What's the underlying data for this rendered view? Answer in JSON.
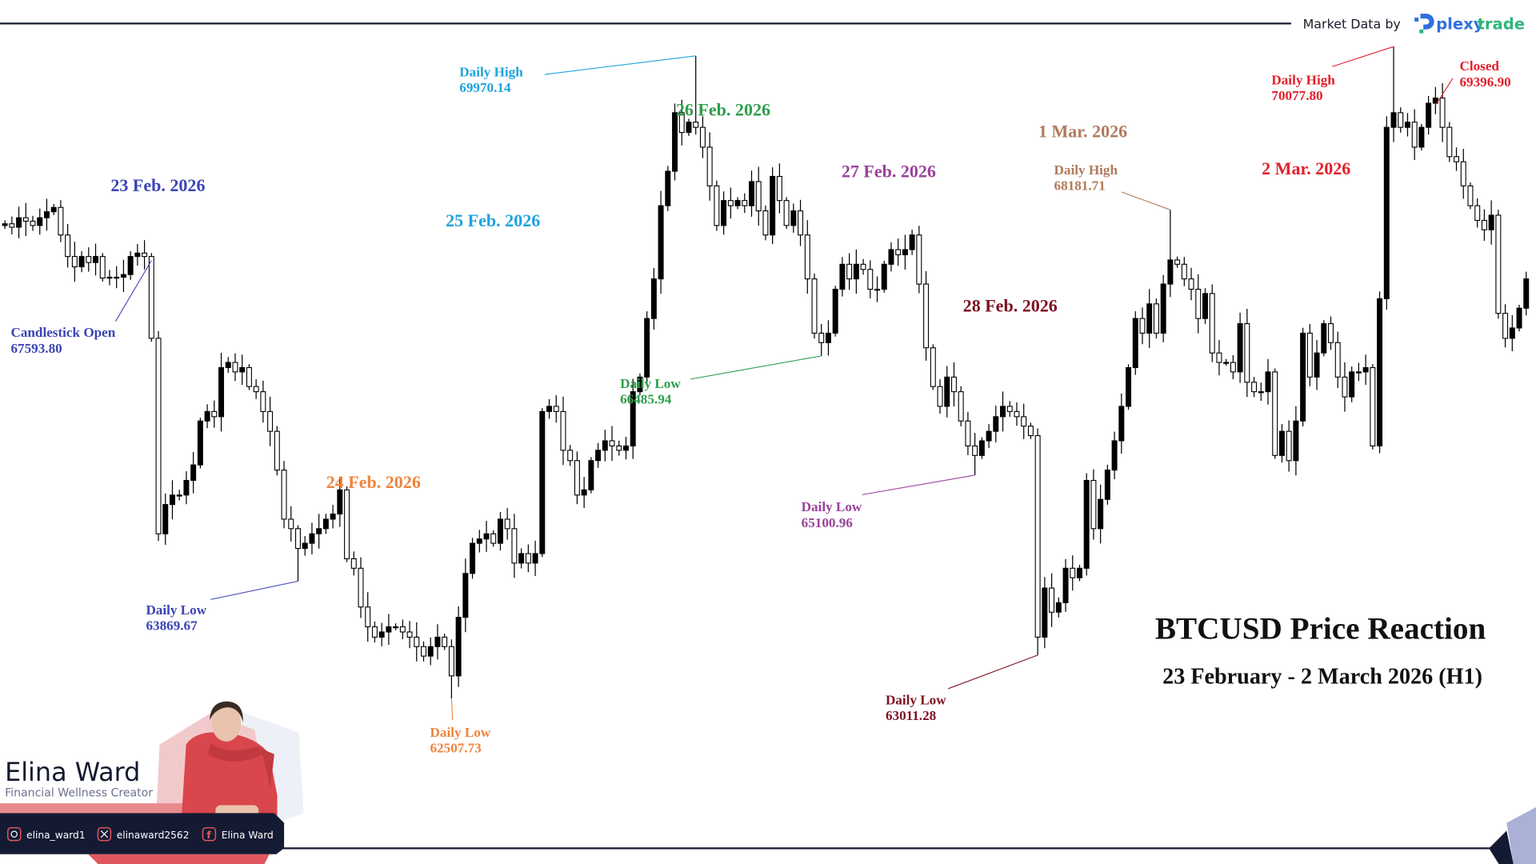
{
  "header": {
    "market_data_label": "Market Data by",
    "brand_name_part1": "plexy",
    "brand_name_part2": "trade",
    "brand_colors": {
      "blue": "#2f6fe0",
      "green": "#2fb57a"
    }
  },
  "title": "BTCUSD Price Reaction",
  "subtitle": "23 February - 2 March 2026 (H1)",
  "day_labels": [
    {
      "text": "23 Feb. 2026",
      "color": "#3b44b5"
    },
    {
      "text": "24 Feb. 2026",
      "color": "#f0843c"
    },
    {
      "text": "25 Feb. 2026",
      "color": "#1fa3de"
    },
    {
      "text": "26 Feb. 2026",
      "color": "#2f9e4c"
    },
    {
      "text": "27 Feb. 2026",
      "color": "#9a429c"
    },
    {
      "text": "28 Feb. 2026",
      "color": "#7d1020"
    },
    {
      "text": "1 Mar. 2026",
      "color": "#b07a5b"
    },
    {
      "text": "2 Mar. 2026",
      "color": "#e0202e"
    }
  ],
  "annotations": [
    {
      "label": "Candlestick Open",
      "value": "67593.80",
      "price": 67593.8,
      "candle": 21,
      "color": "#3b44b5"
    },
    {
      "label": "Daily Low",
      "value": "63869.67",
      "price": 63869.67,
      "candle": 42,
      "color": "#3b44b5"
    },
    {
      "label": "Daily Low",
      "value": "62507.73",
      "price": 62507.73,
      "candle": 64,
      "color": "#f0843c"
    },
    {
      "label": "Daily High",
      "value": "69970.14",
      "price": 69970.14,
      "candle": 99,
      "color": "#1fa3de"
    },
    {
      "label": "Daily Low",
      "value": "66485.94",
      "price": 66485.94,
      "candle": 117,
      "color": "#2f9e4c"
    },
    {
      "label": "Daily Low",
      "value": "65100.96",
      "price": 65100.96,
      "candle": 139,
      "color": "#9a429c"
    },
    {
      "label": "Daily Low",
      "value": "63011.28",
      "price": 63011.28,
      "candle": 148,
      "color": "#7d1020"
    },
    {
      "label": "Daily High",
      "value": "68181.71",
      "price": 68181.71,
      "candle": 167,
      "color": "#b07a5b"
    },
    {
      "label": "Daily High",
      "value": "70077.80",
      "price": 70077.8,
      "candle": 199,
      "color": "#e0202e"
    },
    {
      "label": "Closed",
      "value": "69396.90",
      "price": 69396.9,
      "candle": 205,
      "color": "#e0202e"
    }
  ],
  "chart_data": {
    "type": "candlestick",
    "symbol": "BTCUSD",
    "timeframe": "H1",
    "bullish_color": "#000000",
    "bearish_color": "#ffffff",
    "grid": false,
    "ylim": [
      62300,
      70250
    ],
    "first_open": 68000,
    "closes": [
      68020,
      67980,
      68090,
      68050,
      68000,
      68090,
      68160,
      68210,
      67890,
      67640,
      67520,
      67640,
      67570,
      67640,
      67390,
      67400,
      67400,
      67430,
      67640,
      67680,
      67640,
      66690,
      64420,
      64760,
      64870,
      64870,
      65040,
      65220,
      65730,
      65840,
      65780,
      66350,
      66410,
      66300,
      66350,
      66130,
      66070,
      65840,
      65610,
      65160,
      64590,
      64480,
      64250,
      64310,
      64420,
      64480,
      64590,
      64650,
      64930,
      64130,
      64020,
      63570,
      63340,
      63220,
      63280,
      63340,
      63340,
      63280,
      63220,
      63110,
      63000,
      63110,
      63220,
      63110,
      62770,
      63450,
      63960,
      64310,
      64360,
      64420,
      64310,
      64590,
      64480,
      64080,
      64190,
      64080,
      64190,
      65840,
      65900,
      65840,
      65390,
      65270,
      64870,
      64930,
      65270,
      65390,
      65500,
      65440,
      65390,
      65440,
      66070,
      66240,
      66920,
      67380,
      68230,
      68630,
      69310,
      69080,
      69200,
      69140,
      68910,
      68460,
      68000,
      68290,
      68230,
      68290,
      68230,
      68510,
      68170,
      67890,
      68570,
      68290,
      68000,
      68170,
      67890,
      67380,
      66750,
      66640,
      66750,
      67260,
      67550,
      67380,
      67550,
      67490,
      67260,
      67260,
      67550,
      67720,
      67660,
      67720,
      67890,
      67320,
      66580,
      66130,
      65900,
      66240,
      66070,
      65730,
      65440,
      65330,
      65500,
      65610,
      65780,
      65900,
      65840,
      65780,
      65670,
      65560,
      63220,
      63790,
      63510,
      63620,
      64020,
      63910,
      64020,
      65040,
      64480,
      64820,
      65160,
      65500,
      65900,
      66350,
      66920,
      66750,
      67090,
      66750,
      67320,
      67600,
      67550,
      67380,
      67260,
      66920,
      67210,
      66520,
      66410,
      66410,
      66300,
      66860,
      66180,
      66070,
      66070,
      66300,
      65330,
      65610,
      65270,
      65730,
      66750,
      66240,
      66520,
      66860,
      66640,
      66240,
      66010,
      66300,
      66300,
      66350,
      65440,
      67150,
      69140,
      69310,
      69140,
      69200,
      68910,
      69140,
      69420,
      69480,
      69140,
      68800,
      68740,
      68460,
      68230,
      68060,
      67950,
      68120,
      66980,
      66690,
      66810,
      67040,
      67380
    ],
    "extremes": [
      {
        "candle": 42,
        "low": 63869.67
      },
      {
        "candle": 64,
        "low": 62507.73
      },
      {
        "candle": 99,
        "high": 69970.14
      },
      {
        "candle": 117,
        "low": 66485.94
      },
      {
        "candle": 139,
        "low": 65100.96
      },
      {
        "candle": 148,
        "low": 63011.28
      },
      {
        "candle": 167,
        "high": 68181.71
      },
      {
        "candle": 199,
        "high": 70077.8
      }
    ]
  },
  "branding": {
    "name": "Elina Ward",
    "tagline": "Financial Wellness Creator",
    "socials": [
      {
        "icon": "instagram-icon",
        "handle": "elina_ward1"
      },
      {
        "icon": "x-icon",
        "handle": "elinaward2562"
      },
      {
        "icon": "facebook-icon",
        "handle": "Elina Ward"
      }
    ],
    "colors": {
      "navy": "#151a33",
      "coral": "#e0585e",
      "name": "#141a2e",
      "tagline": "#6b7190"
    }
  }
}
